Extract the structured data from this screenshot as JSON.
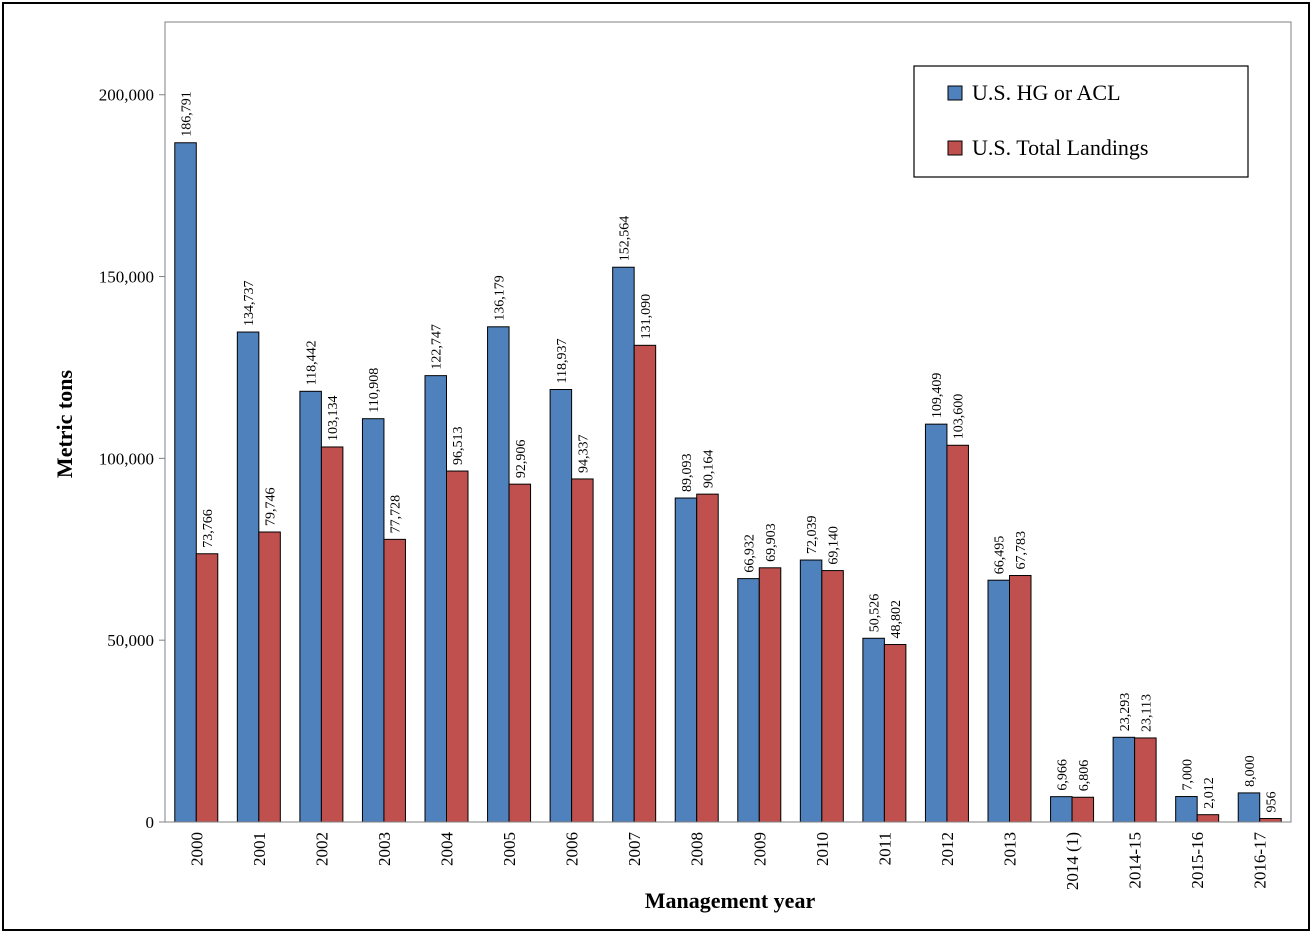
{
  "chart_data": {
    "type": "bar",
    "title": "",
    "xlabel": "Management year",
    "ylabel": "Metric tons",
    "ylim": [
      0,
      220000
    ],
    "yticks": [
      0,
      50000,
      100000,
      150000,
      200000
    ],
    "ytick_labels": [
      "0",
      "50,000",
      "100,000",
      "150,000",
      "200,000"
    ],
    "grid": false,
    "legend_position": "top-right",
    "categories": [
      "2000",
      "2001",
      "2002",
      "2003",
      "2004",
      "2005",
      "2006",
      "2007",
      "2008",
      "2009",
      "2010",
      "2011",
      "2012",
      "2013",
      "2014 (1)",
      "2014-15",
      "2015-16",
      "2016-17"
    ],
    "series": [
      {
        "name": "U.S. HG or ACL",
        "color": "#4f81bd",
        "values": [
          186791,
          134737,
          118442,
          110908,
          122747,
          136179,
          118937,
          152564,
          89093,
          66932,
          72039,
          50526,
          109409,
          66495,
          6966,
          23293,
          7000,
          8000
        ],
        "labels": [
          "186,791",
          "134,737",
          "118,442",
          "110,908",
          "122,747",
          "136,179",
          "118,937",
          "152,564",
          "89,093",
          "66,932",
          "72,039",
          "50,526",
          "109,409",
          "66,495",
          "6,966",
          "23,293",
          "7,000",
          "8,000"
        ]
      },
      {
        "name": "U.S. Total Landings",
        "color": "#c0504d",
        "values": [
          73766,
          79746,
          103134,
          77728,
          96513,
          92906,
          94337,
          131090,
          90164,
          69903,
          69140,
          48802,
          103600,
          67783,
          6806,
          23113,
          2012,
          956
        ],
        "labels": [
          "73,766",
          "79,746",
          "103,134",
          "77,728",
          "96,513",
          "92,906",
          "94,337",
          "131,090",
          "90,164",
          "69,903",
          "69,140",
          "48,802",
          "103,600",
          "67,783",
          "6,806",
          "23,113",
          "2,012",
          "956"
        ]
      }
    ]
  }
}
